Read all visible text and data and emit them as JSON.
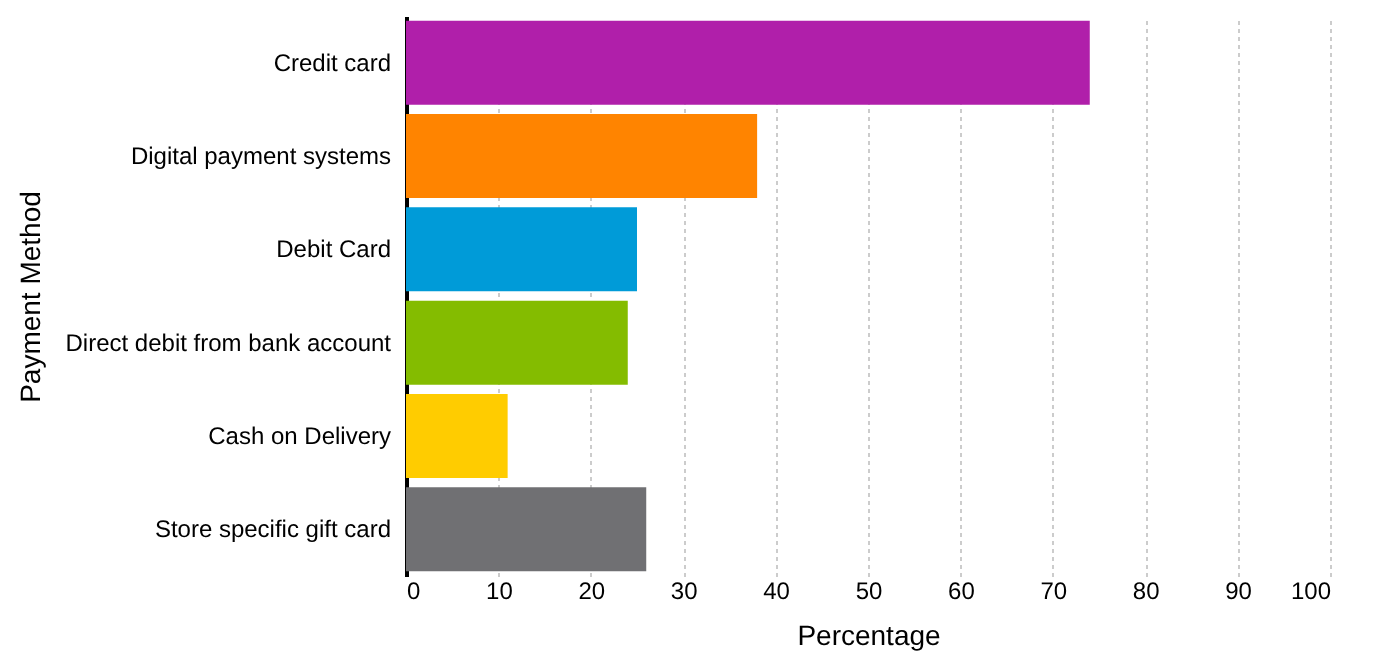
{
  "chart_data": {
    "type": "bar",
    "orientation": "horizontal",
    "categories": [
      "Credit card",
      "Digital payment systems",
      "Debit Card",
      "Direct debit from bank account",
      "Cash on Delivery",
      "Store specific gift card"
    ],
    "values": [
      74,
      38,
      25,
      24,
      11,
      26
    ],
    "colors": [
      "#b01faa",
      "#ff8400",
      "#009bd8",
      "#84bc00",
      "#ffcc00",
      "#707073"
    ],
    "xlim": [
      0,
      100
    ],
    "xticks": [
      0,
      10,
      20,
      30,
      40,
      50,
      60,
      70,
      80,
      90,
      100
    ],
    "xlabel": "Percentage",
    "ylabel": "Payment Method",
    "grid": "x"
  }
}
